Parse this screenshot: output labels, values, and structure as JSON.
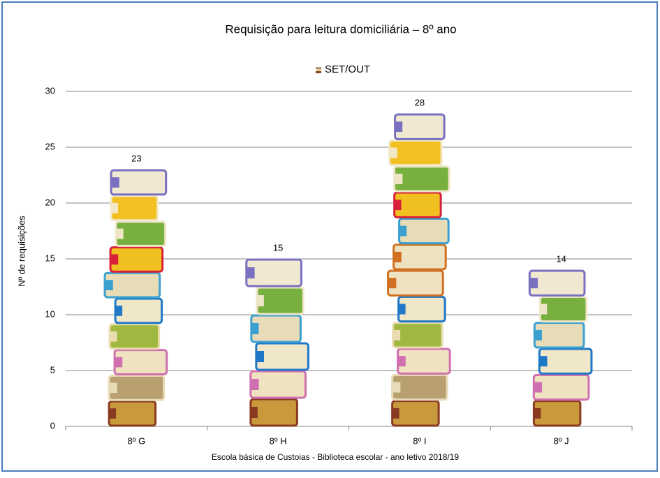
{
  "chart_data": {
    "type": "bar",
    "title": "Requisição para leitura domiciliária – 8º ano",
    "y_label": "Nº de requisições",
    "footer": "Escola básica de Custoias - Biblioteca escolar - ano letivo 2018/19",
    "categories": [
      "8º G",
      "8º H",
      "8º I",
      "8º J"
    ],
    "series": [
      {
        "name": "SET/OUT",
        "values": [
          23,
          15,
          28,
          14
        ]
      }
    ],
    "ylim": [
      0,
      30
    ],
    "yticks": [
      0,
      5,
      10,
      15,
      20,
      25,
      30
    ],
    "grid": true,
    "legend": "top"
  }
}
